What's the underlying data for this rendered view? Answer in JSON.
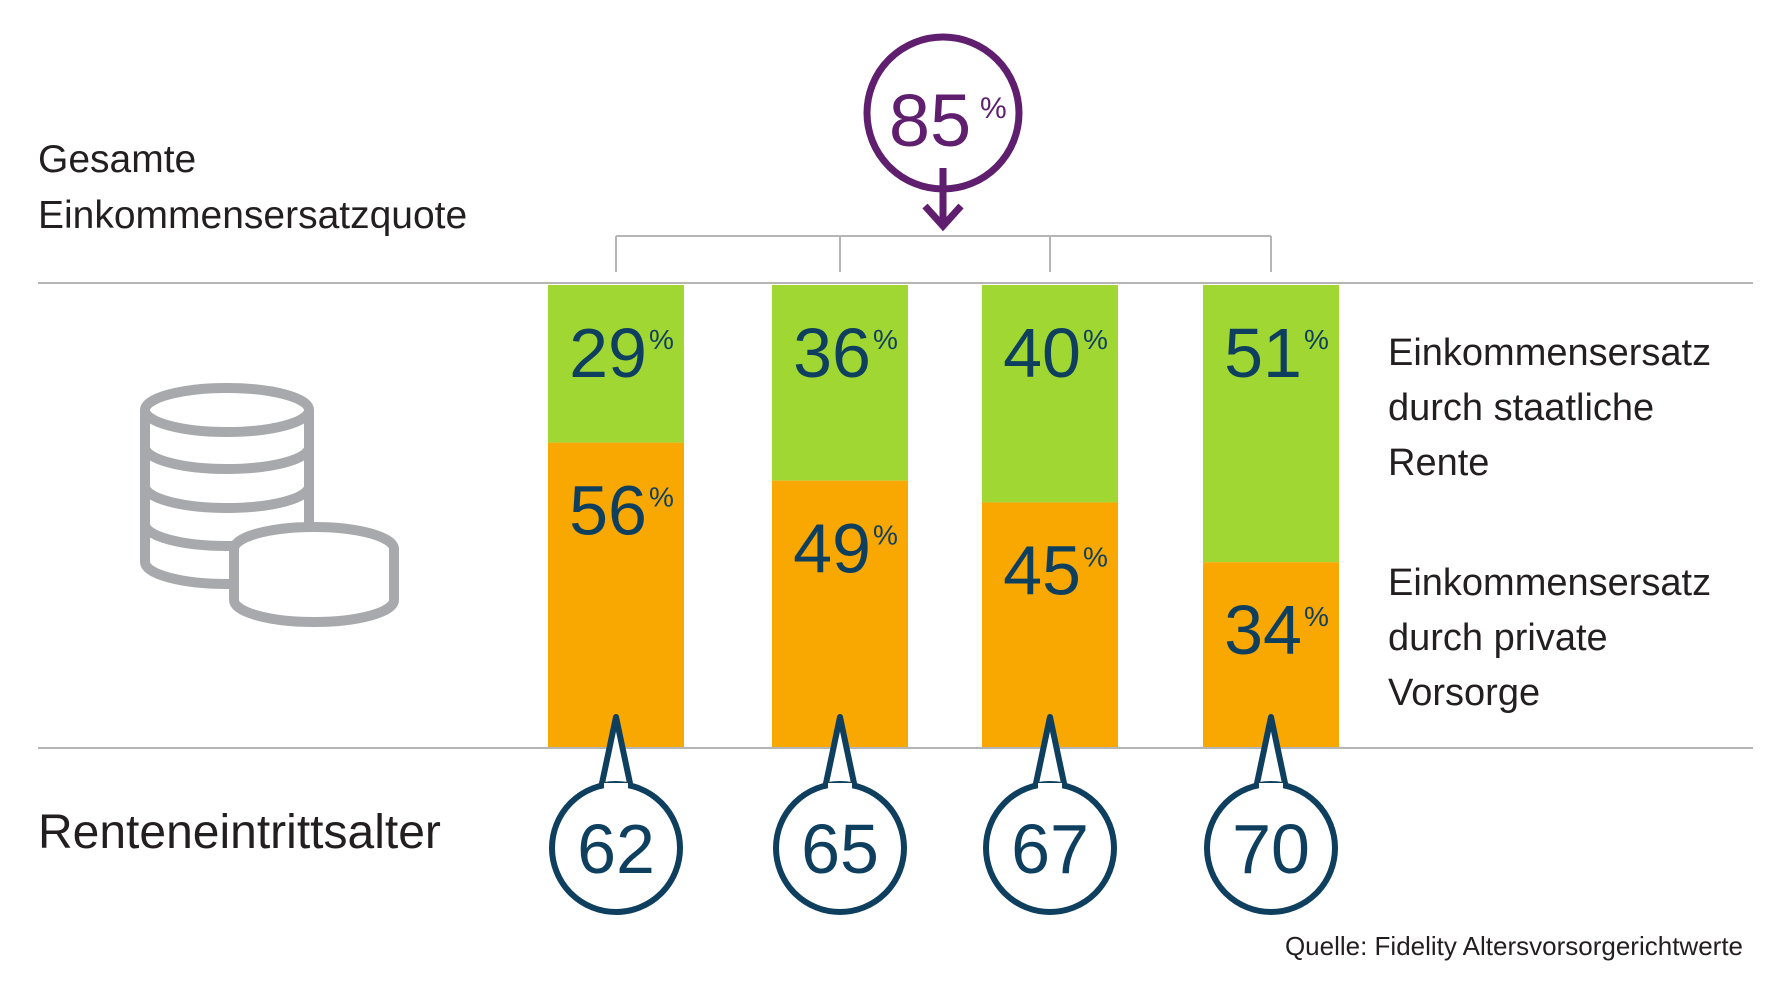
{
  "chart_data": {
    "type": "bar",
    "stacked": true,
    "categories": [
      "62",
      "65",
      "67",
      "70"
    ],
    "series": [
      {
        "name": "Einkommensersatz durch private Vorsorge",
        "values": [
          56,
          49,
          45,
          34
        ],
        "color": "#F8A800"
      },
      {
        "name": "Einkommensersatz durch staatliche Rente",
        "values": [
          29,
          36,
          40,
          51
        ],
        "color": "#A1D733"
      }
    ],
    "ylim": [
      0,
      85
    ],
    "total": {
      "value": 85,
      "unit": "%",
      "color": "#5F1F6E"
    },
    "value_unit": "%",
    "value_color": "#0E3F5F",
    "grid": false,
    "legend_placement": "right"
  },
  "labels": {
    "total_label_line1": "Gesamte",
    "total_label_line2": "Einkommensersatzquote",
    "age_label": "Renteneintrittsalter",
    "legend_state_line1": "Einkommensersatz",
    "legend_state_line2": "durch staatliche",
    "legend_state_line3": "Rente",
    "legend_private_line1": "Einkommensersatz",
    "legend_private_line2": "durch private",
    "legend_private_line3": "Vorsorge",
    "source": "Quelle: Fidelity Altersvorsorgerichtwerte"
  },
  "icons": {
    "coins": "coins-stack-icon",
    "arrow": "arrow-down-icon"
  },
  "colors": {
    "axis_line": "#B5B5B5",
    "icon_gray": "#A7A9AC",
    "text_dark": "#231F20"
  }
}
